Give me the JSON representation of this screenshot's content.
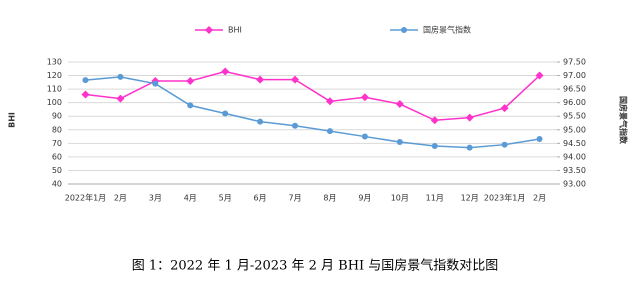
{
  "chart_data": {
    "type": "line",
    "caption": "图 1：2022 年 1 月-2023 年 2 月 BHI 与国房景气指数对比图",
    "y_label": "BHI",
    "y2_label": "国房景气指数",
    "categories": [
      "2022年1月",
      "2月",
      "3月",
      "4月",
      "5月",
      "6月",
      "7月",
      "8月",
      "9月",
      "10月",
      "11月",
      "12月",
      "2023年1月",
      "2月"
    ],
    "series": [
      {
        "name": "BHI",
        "color": "#ff33cc",
        "marker": "diamond",
        "values": [
          106,
          103,
          116,
          116,
          123,
          117,
          117,
          101,
          104,
          99,
          87,
          89,
          96,
          120
        ]
      },
      {
        "name": "国房景气指数",
        "color": "#5b9bd5",
        "marker": "circle",
        "axis": "y2",
        "values": [
          96.83,
          96.95,
          96.7,
          95.9,
          95.6,
          95.3,
          95.15,
          94.95,
          94.75,
          94.55,
          94.4,
          94.34,
          94.45,
          94.66
        ]
      }
    ],
    "ylim": [
      40,
      130
    ],
    "yticks": [
      40,
      50,
      60,
      70,
      80,
      90,
      100,
      110,
      120,
      130
    ],
    "y2lim": [
      93,
      97.5
    ],
    "y2ticks": [
      {
        "value": 93,
        "label": "93.00"
      },
      {
        "value": 93.5,
        "label": "93.50"
      },
      {
        "value": 94,
        "label": "94.00"
      },
      {
        "value": 94.5,
        "label": "94.50"
      },
      {
        "value": 95,
        "label": "95.00"
      },
      {
        "value": 95.5,
        "label": "95.50"
      },
      {
        "value": 96,
        "label": "96.00"
      },
      {
        "value": 96.5,
        "label": "96.50"
      },
      {
        "value": 97,
        "label": "97.00"
      },
      {
        "value": 97.5,
        "label": "97.50"
      }
    ],
    "grid": true,
    "legend": "top"
  }
}
